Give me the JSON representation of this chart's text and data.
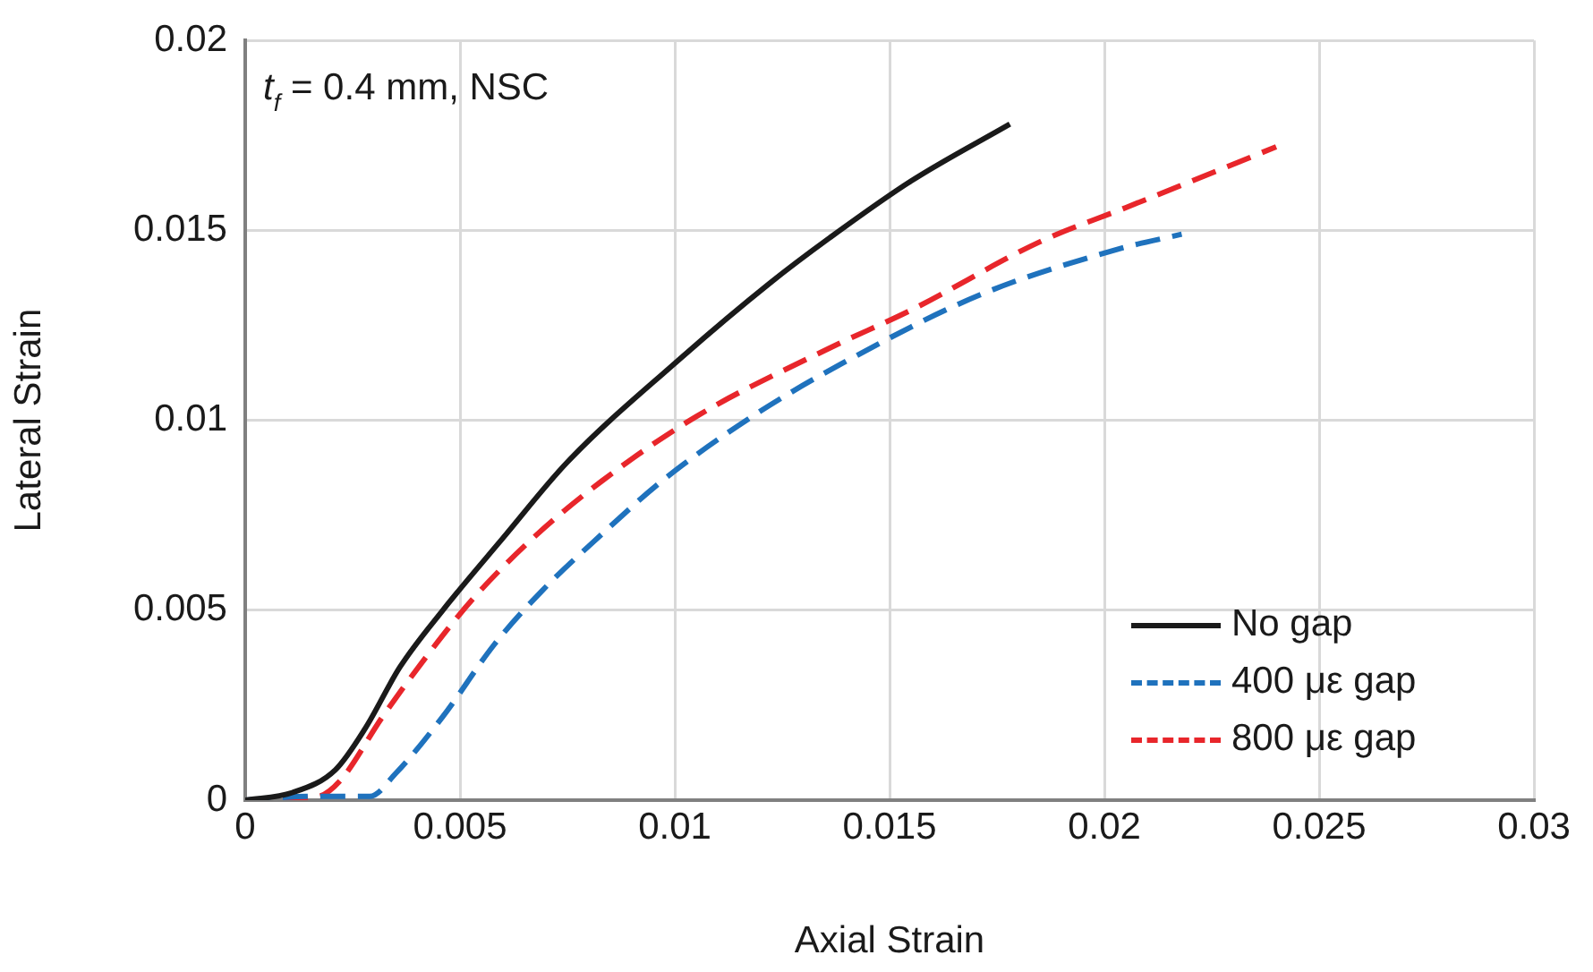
{
  "chart_data": {
    "type": "line",
    "xlabel": "Axial Strain",
    "ylabel": "Lateral Strain",
    "annotations": [
      "t$_{f}$ = 0.4 mm, NSC"
    ],
    "xlim": [
      0,
      0.03
    ],
    "xticks": [
      0,
      0.005,
      0.01,
      0.015,
      0.02,
      0.025,
      0.03
    ],
    "ylim": [
      0,
      0.02
    ],
    "yticks": [
      0,
      0.005,
      0.01,
      0.015,
      0.02
    ],
    "grid": true,
    "legend": "bottom right",
    "marker": "none",
    "series": [
      {
        "name": "No gap",
        "color": "#1a1a1a",
        "line_style": "solid",
        "x": [
          0,
          0.0011,
          0.0021,
          0.0028,
          0.0036,
          0.0046,
          0.006,
          0.0075,
          0.01,
          0.0122,
          0.0136,
          0.0155,
          0.0178
        ],
        "values": [
          0,
          0.0002,
          0.0008,
          0.0019,
          0.0035,
          0.005,
          0.0069,
          0.0089,
          0.0115,
          0.0136,
          0.0148,
          0.0163,
          0.0178
        ]
      },
      {
        "name": "400 με gap",
        "color": "#1f72bd",
        "line_style": "dashed",
        "x": [
          0,
          0.0015,
          0.0029,
          0.0035,
          0.0046,
          0.0058,
          0.0069,
          0.0083,
          0.0097,
          0.0118,
          0.0139,
          0.0171,
          0.0203,
          0.0218
        ],
        "values": [
          0,
          0.0001,
          0.0001,
          0.0007,
          0.0022,
          0.0041,
          0.0055,
          0.007,
          0.0084,
          0.0101,
          0.0115,
          0.0133,
          0.0145,
          0.0149
        ]
      },
      {
        "name": "800 με gap",
        "color": "#e8262b",
        "line_style": "dashed",
        "x": [
          0,
          0.0017,
          0.0022,
          0.0032,
          0.0043,
          0.0053,
          0.0067,
          0.0083,
          0.0105,
          0.0136,
          0.0155,
          0.0185,
          0.0205,
          0.024
        ],
        "values": [
          0,
          0.0001,
          0.0005,
          0.0022,
          0.0039,
          0.0053,
          0.0069,
          0.0084,
          0.0101,
          0.0119,
          0.0129,
          0.0147,
          0.0156,
          0.0172
        ]
      }
    ]
  }
}
